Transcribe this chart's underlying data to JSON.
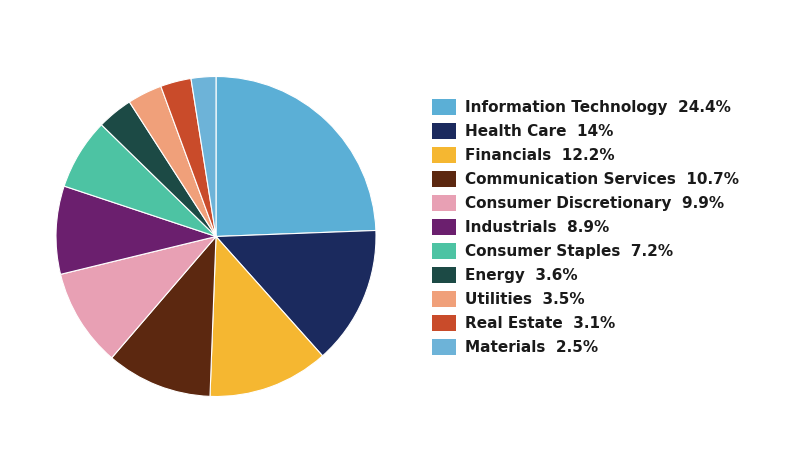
{
  "sectors": [
    "Information Technology",
    "Health Care",
    "Financials",
    "Communication Services",
    "Consumer Discretionary",
    "Industrials",
    "Consumer Staples",
    "Energy",
    "Utilities",
    "Real Estate",
    "Materials"
  ],
  "values": [
    24.4,
    14.0,
    12.2,
    10.7,
    9.9,
    8.9,
    7.2,
    3.6,
    3.5,
    3.1,
    2.5
  ],
  "colors": [
    "#5BAFD6",
    "#1B2A5E",
    "#F5B731",
    "#5C2810",
    "#E8A0B4",
    "#6B1F6E",
    "#4DC3A3",
    "#1C4A45",
    "#F0A07A",
    "#C94B2A",
    "#6DB3D8"
  ],
  "legend_labels": [
    "Information Technology  24.4%",
    "Health Care  14%",
    "Financials  12.2%",
    "Communication Services  10.7%",
    "Consumer Discretionary  9.9%",
    "Industrials  8.9%",
    "Consumer Staples  7.2%",
    "Energy  3.6%",
    "Utilities  3.5%",
    "Real Estate  3.1%",
    "Materials  2.5%"
  ],
  "background_color": "#FFFFFF",
  "legend_fontsize": 11,
  "startangle": 90
}
